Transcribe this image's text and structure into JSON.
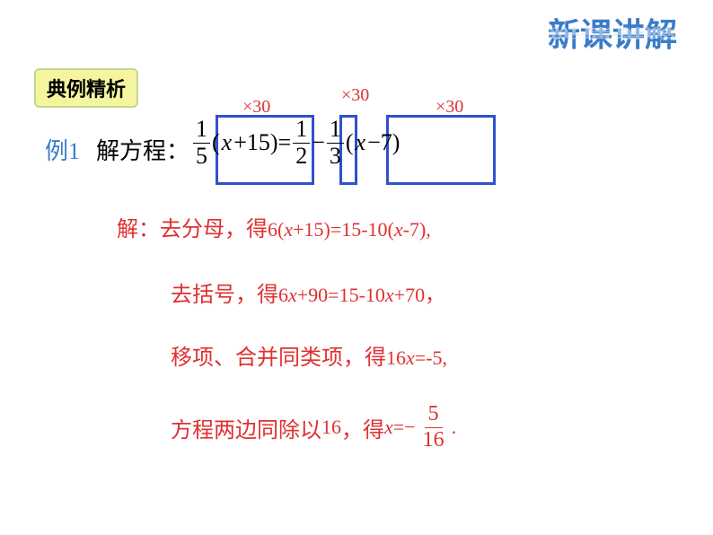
{
  "header": {
    "title": "新课讲解"
  },
  "section": {
    "badge": "典例精析"
  },
  "annotations": {
    "t1": "×30",
    "t2": "×30",
    "t3": "×30"
  },
  "example": {
    "label": "例1",
    "prefix": "解方程：",
    "frac1_num": "1",
    "frac1_den": "5",
    "part1": "(",
    "var1": "x",
    "part1b": "+15)=",
    "frac2_num": "1",
    "frac2_den": "2",
    "minus": "−",
    "frac3_num": "1",
    "frac3_den": "3",
    "part2": "(",
    "var2": "x",
    "part2b": "−7)"
  },
  "solution": {
    "line1_pre": "解：去分母，得",
    "line1_math_a": "6(",
    "line1_var1": "x",
    "line1_math_b": "+15)=15-10(",
    "line1_var2": "x",
    "line1_math_c": "-7),",
    "line2_pre": "去括号，得",
    "line2_math_a": "6",
    "line2_var1": "x",
    "line2_math_b": "+90=15-10",
    "line2_var2": "x",
    "line2_math_c": "+70，",
    "line3_pre": "移项、合并同类项，得",
    "line3_math_a": "16",
    "line3_var": "x",
    "line3_math_b": "=-5,",
    "line4_pre": "方程两边同除以",
    "line4_num": "16",
    "line4_mid": "，得",
    "line4_var": "x",
    "line4_eq": "=−",
    "line4_frac_num": "5",
    "line4_frac_den": "16",
    "line4_end": "."
  }
}
